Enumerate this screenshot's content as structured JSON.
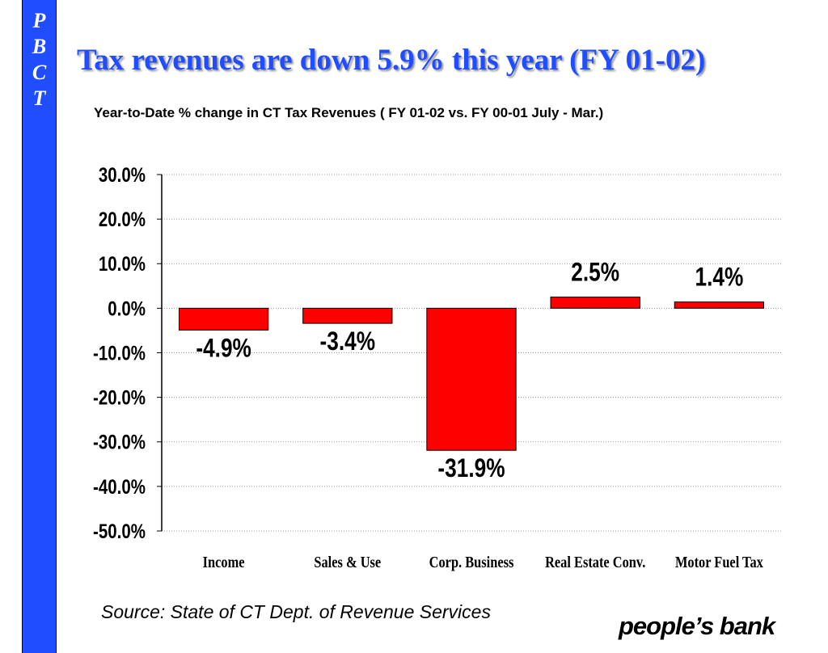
{
  "sidebar": {
    "letters": [
      "P",
      "B",
      "C",
      "T"
    ]
  },
  "title": "Tax revenues are down 5.9% this year (FY 01-02)",
  "subtitle": "Year-to-Date % change in CT Tax Revenues ( FY 01-02 vs. FY 00-01 July - Mar.)",
  "source": "Source: State of CT Dept. of Revenue Services",
  "logo": "people’s bank",
  "colors": {
    "bar": "#ff0000",
    "title": "#1f4dff",
    "sidebar": "#1f4dff"
  },
  "chart_data": {
    "type": "bar",
    "categories": [
      "Income",
      "Sales & Use",
      "Corp. Business",
      "Real Estate Conv.",
      "Motor Fuel Tax"
    ],
    "values": [
      -4.9,
      -3.4,
      -31.9,
      2.5,
      1.4
    ],
    "data_labels": [
      "-4.9%",
      "-3.4%",
      "-31.9%",
      "2.5%",
      "1.4%"
    ],
    "y_ticks": [
      "30.0%",
      "20.0%",
      "10.0%",
      "0.0%",
      "-10.0%",
      "-20.0%",
      "-30.0%",
      "-40.0%",
      "-50.0%"
    ],
    "ylim": [
      -50,
      30
    ],
    "grid": true,
    "legend": "none"
  }
}
